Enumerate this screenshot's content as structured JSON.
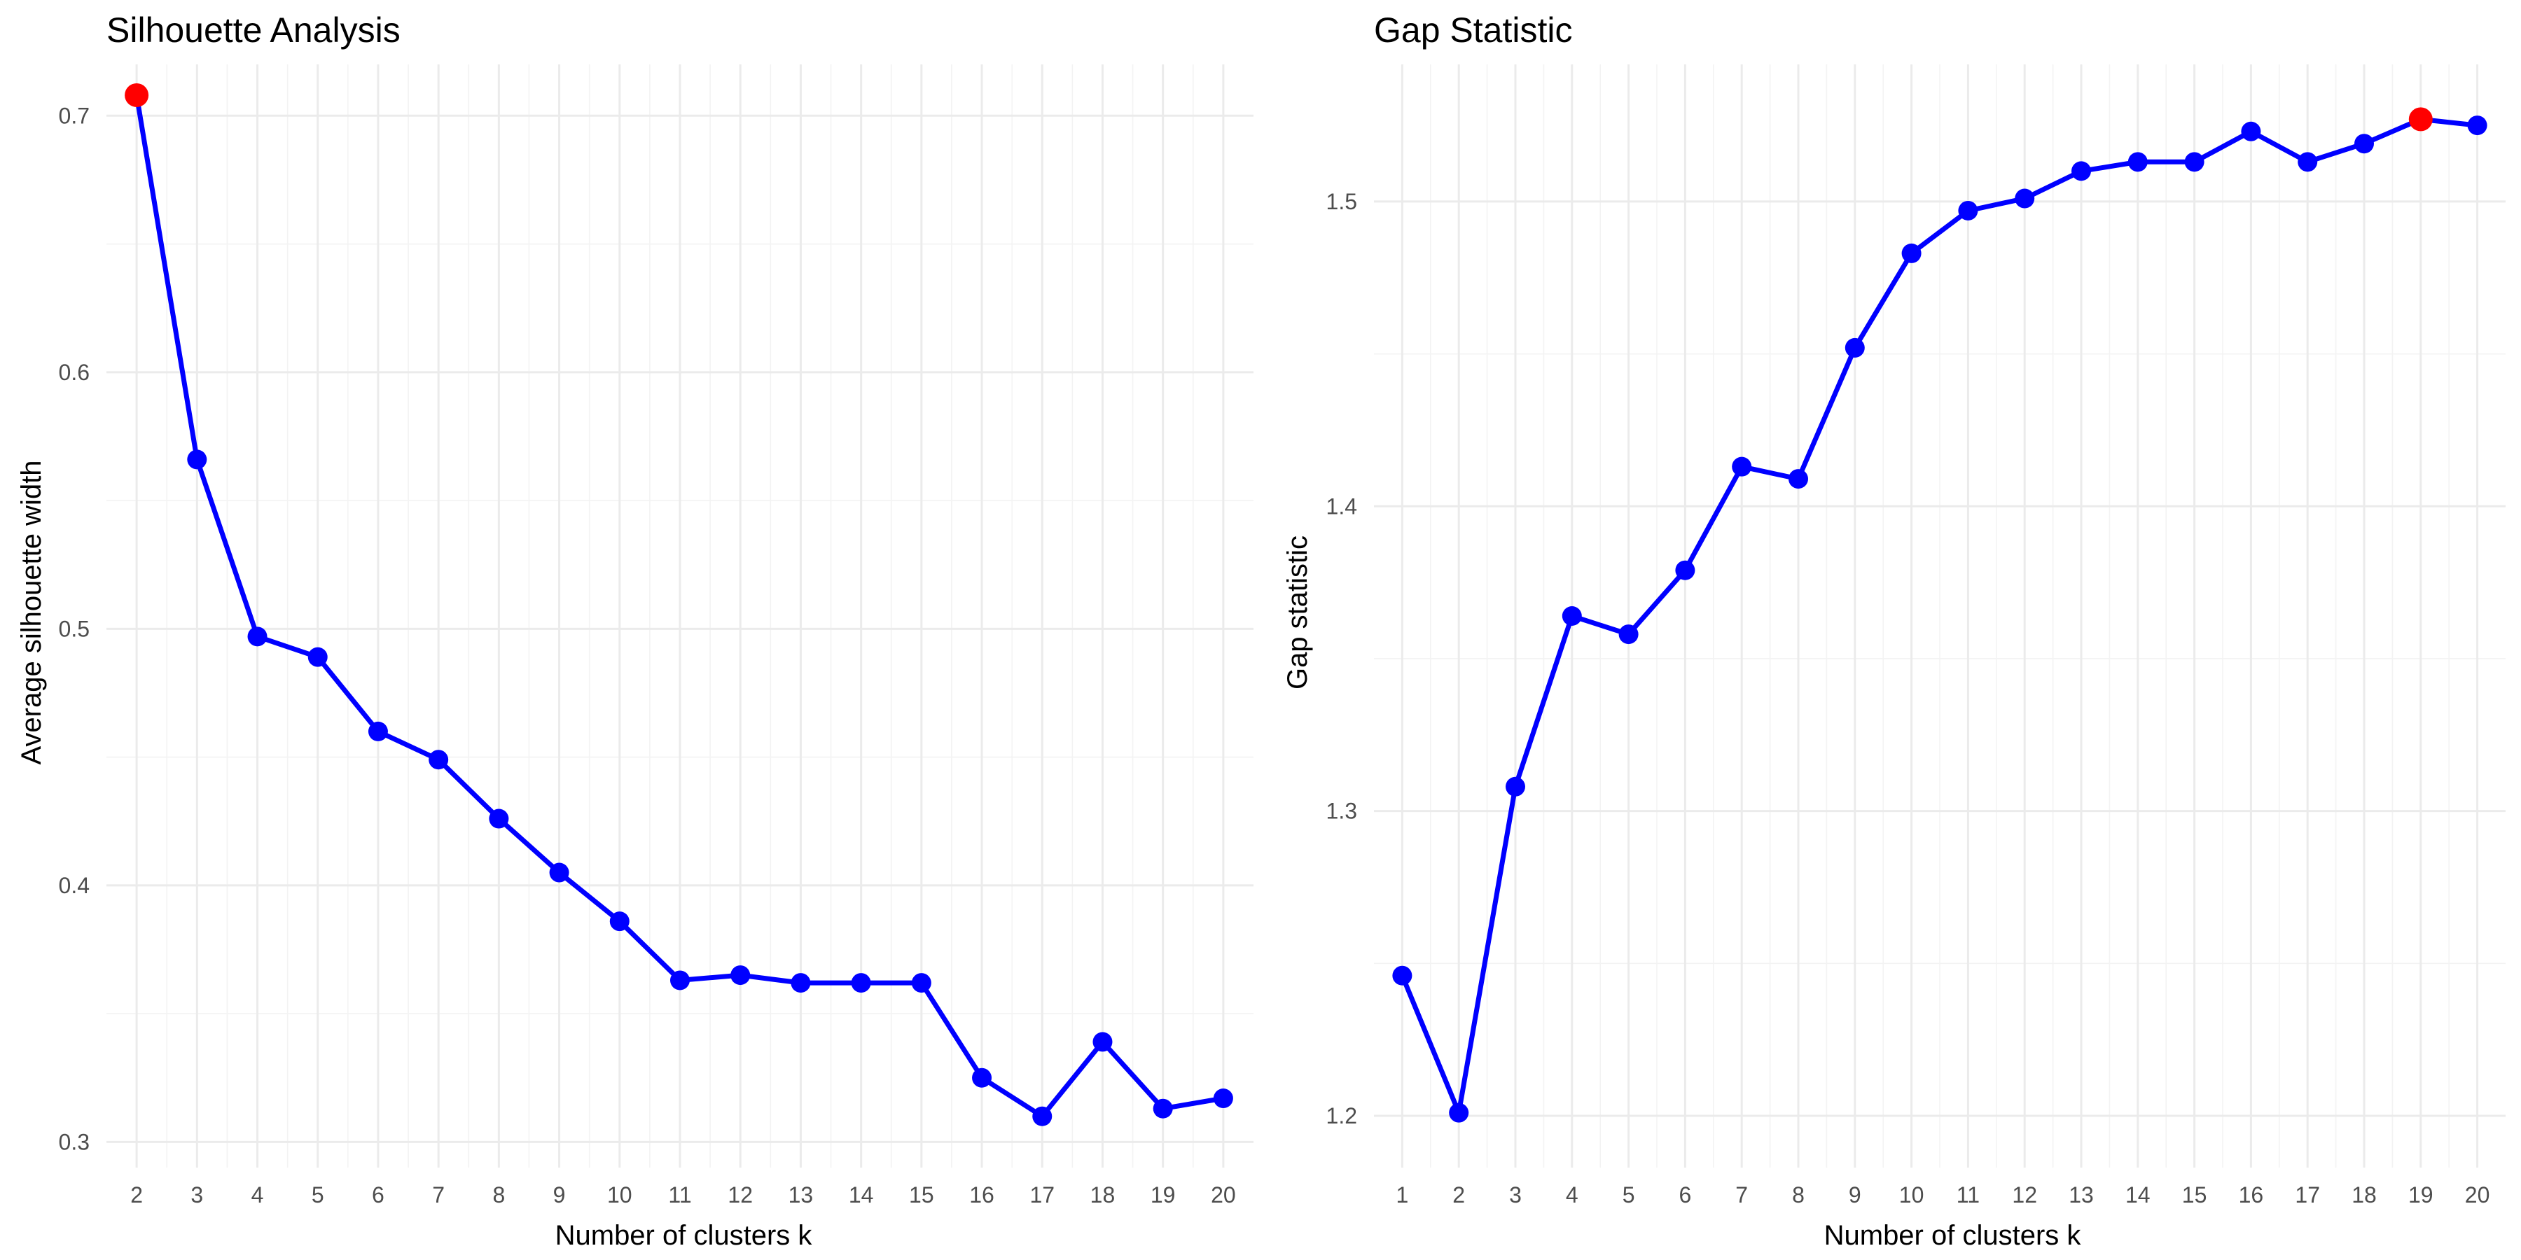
{
  "chart_data": [
    {
      "type": "line",
      "title": "Silhouette Analysis",
      "xlabel": "Number of clusters k",
      "ylabel": "Average silhouette width",
      "x": [
        2,
        3,
        4,
        5,
        6,
        7,
        8,
        9,
        10,
        11,
        12,
        13,
        14,
        15,
        16,
        17,
        18,
        19,
        20
      ],
      "y": [
        0.708,
        0.566,
        0.497,
        0.489,
        0.46,
        0.449,
        0.426,
        0.405,
        0.386,
        0.363,
        0.365,
        0.362,
        0.362,
        0.362,
        0.325,
        0.31,
        0.339,
        0.313,
        0.317
      ],
      "highlight": {
        "x": 2,
        "y": 0.708,
        "color": "#ff0000"
      },
      "xlim": [
        1.5,
        20.5
      ],
      "ylim": [
        0.29,
        0.72
      ],
      "xticks": [
        2,
        3,
        4,
        5,
        6,
        7,
        8,
        9,
        10,
        11,
        12,
        13,
        14,
        15,
        16,
        17,
        18,
        19,
        20
      ],
      "yticks": [
        0.3,
        0.4,
        0.5,
        0.6,
        0.7
      ],
      "ytick_labels": [
        "0.3",
        "0.4",
        "0.5",
        "0.6",
        "0.7"
      ],
      "line_color": "#0000ff",
      "grid": true
    },
    {
      "type": "line",
      "title": "Gap Statistic",
      "xlabel": "Number of clusters k",
      "ylabel": "Gap statistic",
      "x": [
        1,
        2,
        3,
        4,
        5,
        6,
        7,
        8,
        9,
        10,
        11,
        12,
        13,
        14,
        15,
        16,
        17,
        18,
        19,
        20
      ],
      "y": [
        1.246,
        1.201,
        1.308,
        1.364,
        1.358,
        1.379,
        1.413,
        1.409,
        1.452,
        1.483,
        1.497,
        1.501,
        1.51,
        1.513,
        1.513,
        1.523,
        1.513,
        1.519,
        1.527,
        1.525
      ],
      "highlight": {
        "x": 19,
        "y": 1.527,
        "color": "#ff0000"
      },
      "xlim": [
        0.5,
        20.5
      ],
      "ylim": [
        1.183,
        1.545
      ],
      "xticks": [
        1,
        2,
        3,
        4,
        5,
        6,
        7,
        8,
        9,
        10,
        11,
        12,
        13,
        14,
        15,
        16,
        17,
        18,
        19,
        20
      ],
      "yticks": [
        1.2,
        1.3,
        1.4,
        1.5
      ],
      "ytick_labels": [
        "1.2",
        "1.3",
        "1.4",
        "1.5"
      ],
      "line_color": "#0000ff",
      "grid": true
    }
  ]
}
